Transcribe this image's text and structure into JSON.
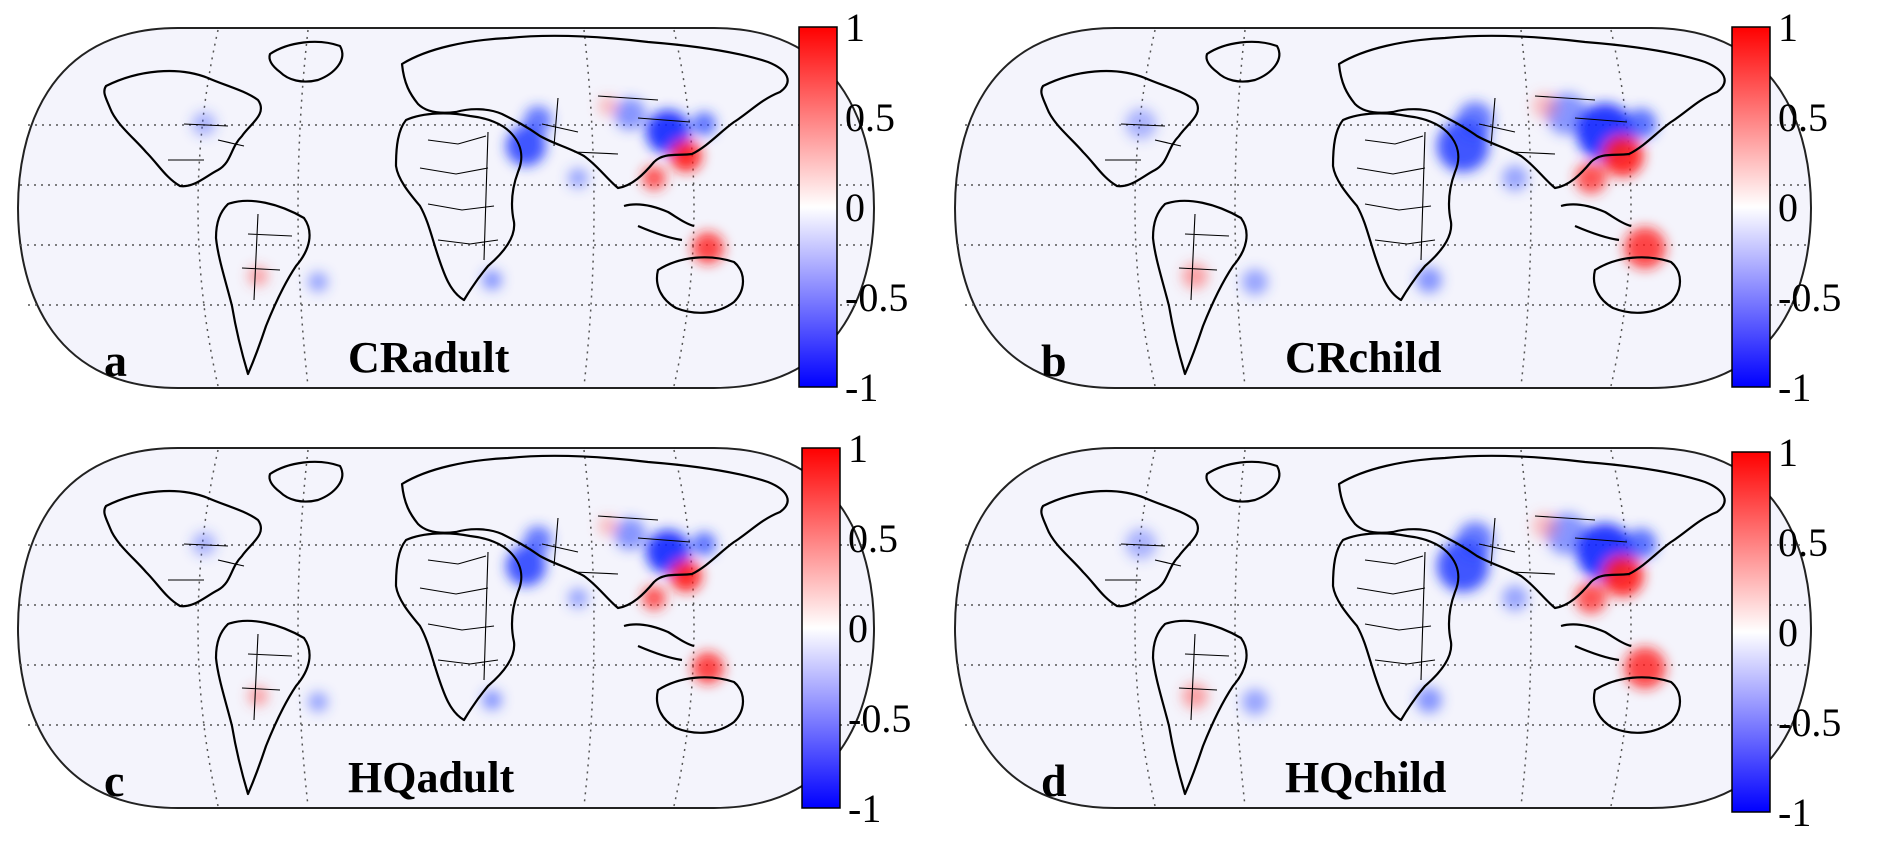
{
  "colorbar": {
    "ticks": [
      {
        "value": 1,
        "label": "1"
      },
      {
        "value": 0.5,
        "label": "0.5"
      },
      {
        "value": 0,
        "label": "0"
      },
      {
        "value": -0.5,
        "label": "-0.5"
      },
      {
        "value": -1,
        "label": "-1"
      }
    ],
    "colors": {
      "max": "#ff0000",
      "zero": "#ffffff",
      "min": "#0000ff"
    }
  },
  "panels": [
    {
      "letter": "a",
      "title": "CRadult"
    },
    {
      "letter": "b",
      "title": "CRchild"
    },
    {
      "letter": "c",
      "title": "HQadult"
    },
    {
      "letter": "d",
      "title": "HQchild"
    }
  ],
  "colors": {
    "ocean_background": "#f4f4fc",
    "positive": "#ff0000",
    "negative": "#0000ff"
  }
}
